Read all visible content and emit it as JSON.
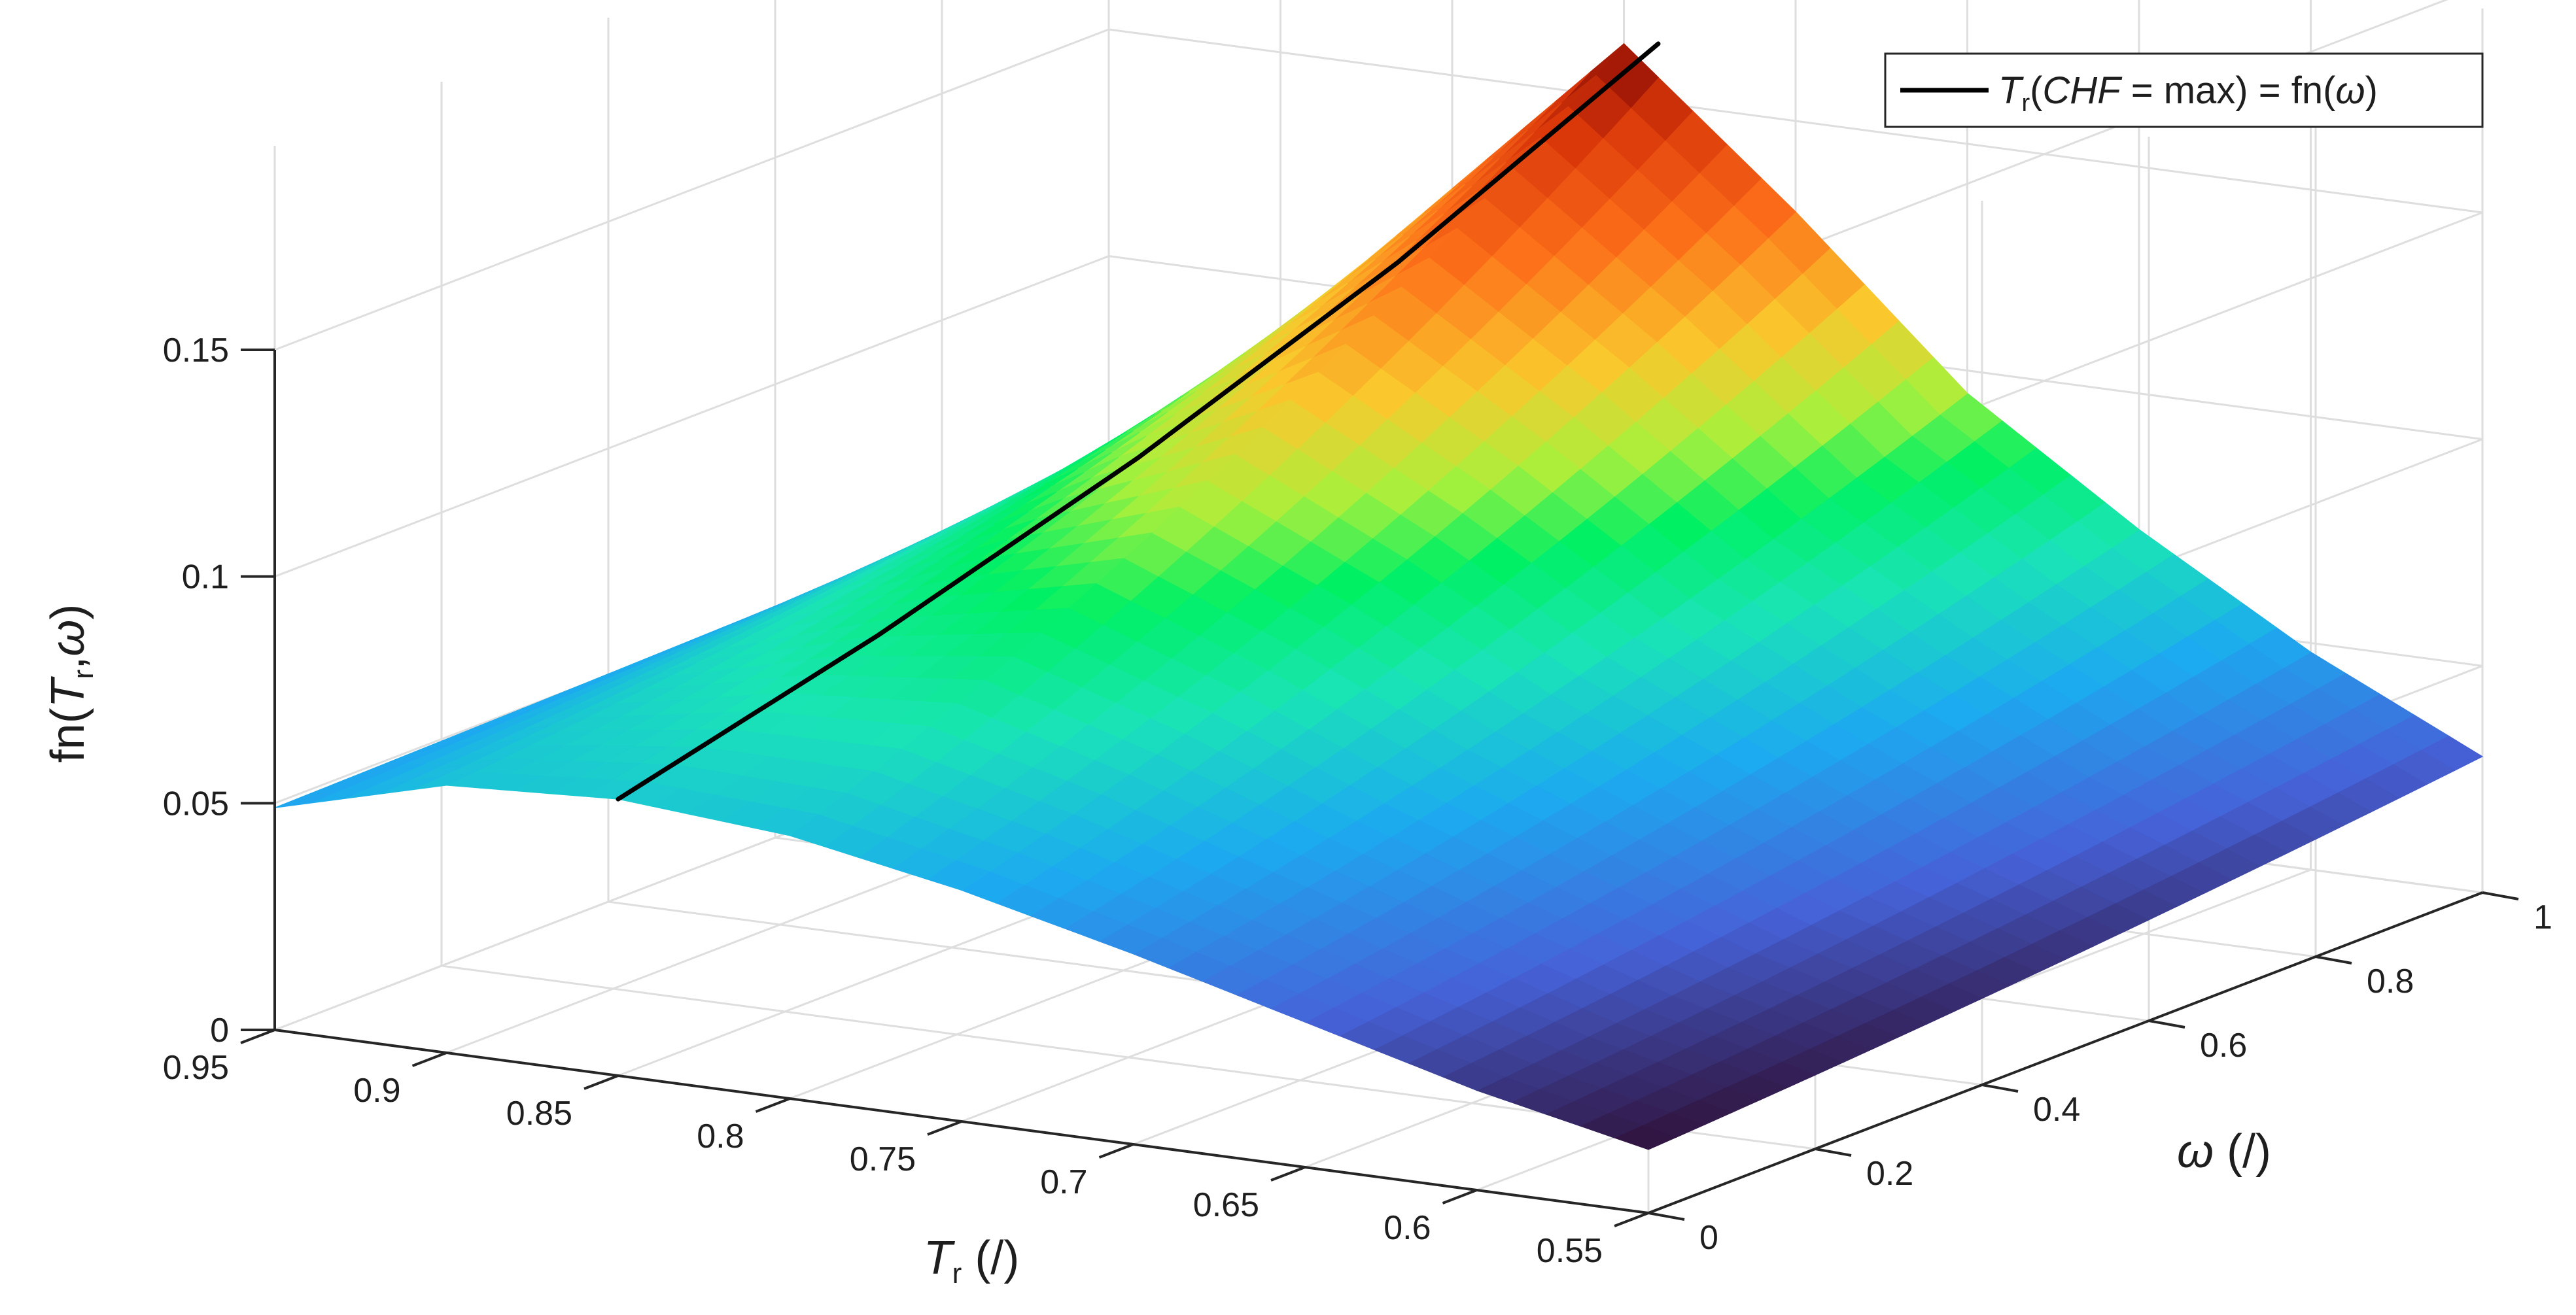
{
  "chart_data": {
    "type": "surface3d",
    "title": "",
    "xlabel": {
      "var": "T",
      "sub": "r",
      "unit": " (/)"
    },
    "ylabel": {
      "var": "ω",
      "unit": " (/)"
    },
    "zlabel": {
      "pre": "fn(",
      "var": "T",
      "sub": "r",
      "post": ",",
      "var2": "ω",
      "end": ")"
    },
    "x_ticks": [
      "0.95",
      "0.9",
      "0.85",
      "0.8",
      "0.75",
      "0.7",
      "0.65",
      "0.6",
      "0.55"
    ],
    "y_ticks": [
      "0",
      "0.2",
      "0.4",
      "0.6",
      "0.8",
      "1"
    ],
    "z_ticks": [
      "0",
      "0.05",
      "0.1",
      "0.15"
    ],
    "xlim": [
      0.55,
      0.95
    ],
    "ylim": [
      0,
      1
    ],
    "zlim": [
      0,
      0.15
    ],
    "grid": true,
    "colormap": "turbo",
    "surface_samples": [
      {
        "omega": 0,
        "Tr": [
          0.95,
          0.9,
          0.85,
          0.8,
          0.75,
          0.7,
          0.65,
          0.6,
          0.55
        ],
        "z": [
          0.049,
          0.059,
          0.061,
          0.058,
          0.051,
          0.042,
          0.032,
          0.022,
          0.014
        ]
      },
      {
        "omega": 1,
        "Tr": [
          0.95,
          0.9,
          0.85,
          0.8,
          0.75,
          0.7,
          0.65,
          0.6,
          0.55
        ],
        "z": [
          0.053,
          0.085,
          0.125,
          0.162,
          0.13,
          0.095,
          0.07,
          0.048,
          0.03
        ]
      }
    ],
    "series": [
      {
        "name": "T_r(CHF = max) = fn(ω)",
        "line": {
          "omega": [
            0,
            0.25,
            0.5,
            0.75,
            1
          ],
          "Tr": [
            0.85,
            0.835,
            0.82,
            0.805,
            0.79
          ],
          "z": [
            0.061,
            0.081,
            0.104,
            0.131,
            0.163
          ]
        }
      }
    ],
    "legend": {
      "placement": "top-right",
      "entry": {
        "var": "T",
        "sub": "r",
        "open": "(",
        "chf": "CHF",
        "mid": " = max) = fn(",
        "omega": "ω",
        "close": ")"
      }
    }
  }
}
